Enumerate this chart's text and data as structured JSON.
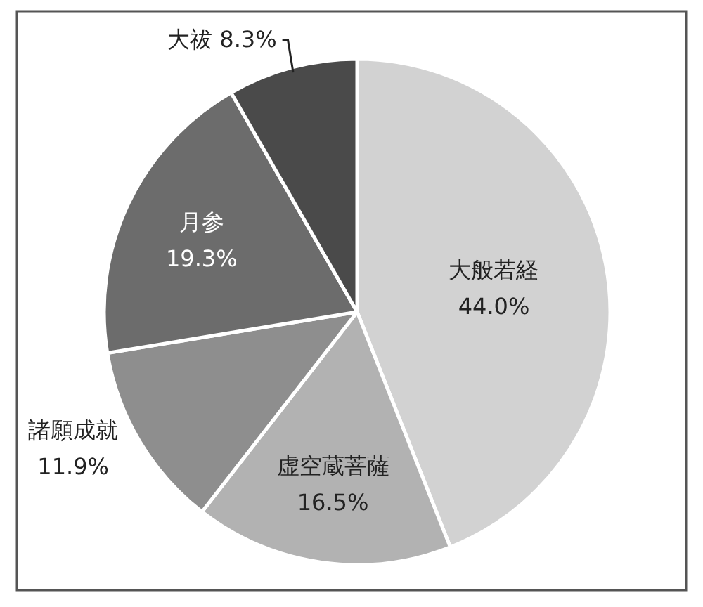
{
  "chart_data": {
    "type": "pie",
    "categories": [
      "大般若経",
      "虚空蔵菩薩",
      "諸願成就",
      "月参",
      "大祓"
    ],
    "values": [
      44.0,
      16.5,
      11.9,
      19.3,
      8.3
    ],
    "colors": [
      "#d2d2d2",
      "#b2b2b2",
      "#8e8e8e",
      "#6c6c6c",
      "#4a4a4a"
    ],
    "value_labels": [
      "44.0%",
      "16.5%",
      "11.9%",
      "19.3%",
      "8.3%"
    ]
  }
}
